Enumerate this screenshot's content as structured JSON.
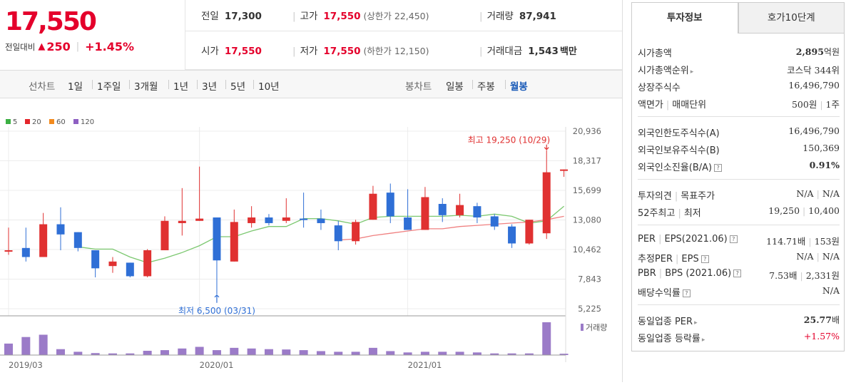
{
  "price": {
    "current": "17,550",
    "change_label": "전일대비",
    "change_arrow": "▲",
    "change_amount": "250",
    "change_rate": "+1.45%"
  },
  "quote": {
    "prev_close": {
      "label": "전일",
      "value": "17,300"
    },
    "high": {
      "label": "고가",
      "value": "17,550",
      "sub": "(상한가 22,450)"
    },
    "volume": {
      "label": "거래량",
      "value": "87,941"
    },
    "open": {
      "label": "시가",
      "value": "17,550"
    },
    "low": {
      "label": "저가",
      "value": "17,550",
      "sub": "(하한가 12,150)"
    },
    "amount": {
      "label": "거래대금",
      "value": "1,543",
      "unit": "백만"
    }
  },
  "period_bar": {
    "line_label": "선차트",
    "line_periods": [
      "1일",
      "1주일",
      "3개월",
      "1년",
      "3년",
      "5년",
      "10년"
    ],
    "candle_label": "봉차트",
    "candle_periods": [
      "일봉",
      "주봉",
      "월봉"
    ],
    "active_candle": "월봉"
  },
  "chart_data": {
    "type": "candlestick",
    "legend": [
      {
        "name": "5",
        "color": "#3cb043"
      },
      {
        "name": "20",
        "color": "#e4262c"
      },
      {
        "name": "60",
        "color": "#f28a1e"
      },
      {
        "name": "120",
        "color": "#8e5fc2"
      }
    ],
    "y_ticks": [
      "20,936",
      "18,317",
      "15,699",
      "13,080",
      "10,462",
      "7,843",
      "5,225"
    ],
    "y_range": [
      5225,
      20936
    ],
    "x_labels": [
      {
        "label": "2019/03",
        "index": 0
      },
      {
        "label": "2020/01",
        "index": 11
      },
      {
        "label": "2021/01",
        "index": 23
      }
    ],
    "max_annotation": {
      "text": "최고 19,250 (10/29)",
      "index": 31,
      "value": 19250
    },
    "min_annotation": {
      "text": "최저 6,500 (03/31)",
      "index": 12,
      "value": 6500
    },
    "volume_label": "거래량",
    "candles": [
      {
        "o": 10300,
        "h": 12400,
        "l": 10000,
        "c": 10400,
        "v": 0.35
      },
      {
        "o": 10600,
        "h": 12400,
        "l": 9400,
        "c": 9800,
        "v": 0.55
      },
      {
        "o": 9800,
        "h": 13700,
        "l": 9800,
        "c": 12700,
        "v": 0.62
      },
      {
        "o": 12700,
        "h": 14200,
        "l": 10400,
        "c": 11800,
        "v": 0.18
      },
      {
        "o": 12000,
        "h": 12000,
        "l": 10300,
        "c": 10600,
        "v": 0.1
      },
      {
        "o": 10400,
        "h": 10400,
        "l": 8000,
        "c": 8800,
        "v": 0.06
      },
      {
        "o": 9000,
        "h": 9800,
        "l": 8400,
        "c": 9400,
        "v": 0.05
      },
      {
        "o": 9300,
        "h": 9300,
        "l": 8000,
        "c": 8100,
        "v": 0.05
      },
      {
        "o": 8100,
        "h": 10500,
        "l": 8000,
        "c": 10400,
        "v": 0.13
      },
      {
        "o": 10400,
        "h": 13400,
        "l": 10400,
        "c": 13000,
        "v": 0.15
      },
      {
        "o": 12800,
        "h": 15900,
        "l": 11700,
        "c": 13000,
        "v": 0.2
      },
      {
        "o": 13000,
        "h": 17800,
        "l": 13000,
        "c": 13200,
        "v": 0.25
      },
      {
        "o": 13300,
        "h": 13300,
        "l": 6500,
        "c": 9500,
        "v": 0.15
      },
      {
        "o": 9400,
        "h": 14000,
        "l": 9400,
        "c": 12900,
        "v": 0.22
      },
      {
        "o": 12800,
        "h": 14300,
        "l": 12400,
        "c": 13300,
        "v": 0.2
      },
      {
        "o": 13300,
        "h": 13600,
        "l": 12600,
        "c": 12800,
        "v": 0.18
      },
      {
        "o": 13000,
        "h": 15000,
        "l": 12800,
        "c": 13300,
        "v": 0.17
      },
      {
        "o": 13200,
        "h": 15500,
        "l": 12400,
        "c": 13100,
        "v": 0.15
      },
      {
        "o": 13200,
        "h": 14000,
        "l": 12200,
        "c": 12800,
        "v": 0.12
      },
      {
        "o": 12600,
        "h": 13000,
        "l": 10400,
        "c": 11200,
        "v": 0.1
      },
      {
        "o": 11200,
        "h": 13100,
        "l": 10900,
        "c": 12900,
        "v": 0.1
      },
      {
        "o": 13100,
        "h": 16100,
        "l": 13100,
        "c": 15400,
        "v": 0.22
      },
      {
        "o": 15500,
        "h": 16300,
        "l": 12800,
        "c": 13400,
        "v": 0.12
      },
      {
        "o": 13300,
        "h": 15800,
        "l": 12300,
        "c": 12200,
        "v": 0.08
      },
      {
        "o": 12200,
        "h": 16000,
        "l": 12200,
        "c": 15100,
        "v": 0.1
      },
      {
        "o": 14500,
        "h": 15000,
        "l": 12900,
        "c": 13500,
        "v": 0.1
      },
      {
        "o": 13500,
        "h": 15400,
        "l": 13300,
        "c": 14400,
        "v": 0.1
      },
      {
        "o": 14300,
        "h": 14600,
        "l": 12800,
        "c": 13300,
        "v": 0.08
      },
      {
        "o": 13400,
        "h": 13600,
        "l": 12200,
        "c": 12500,
        "v": 0.05
      },
      {
        "o": 12500,
        "h": 12700,
        "l": 10600,
        "c": 11000,
        "v": 0.05
      },
      {
        "o": 11000,
        "h": 13100,
        "l": 10900,
        "c": 13100,
        "v": 0.05
      },
      {
        "o": 11900,
        "h": 19250,
        "l": 11400,
        "c": 17300,
        "v": 1.0
      },
      {
        "o": 17550,
        "h": 17550,
        "l": 16900,
        "c": 17550,
        "v": 0.04
      }
    ],
    "ma5": [
      null,
      null,
      null,
      null,
      10700,
      10500,
      10500,
      9800,
      9300,
      9700,
      10200,
      10800,
      11600,
      11600,
      12100,
      12500,
      12500,
      13200,
      13200,
      13000,
      12700,
      13300,
      13400,
      13400,
      13400,
      13400,
      13500,
      13400,
      13600,
      13400,
      12800,
      13000,
      14300
    ],
    "ma20": [
      null,
      null,
      null,
      null,
      null,
      null,
      null,
      null,
      null,
      null,
      null,
      null,
      null,
      null,
      null,
      null,
      null,
      null,
      null,
      11300,
      11400,
      11700,
      11900,
      12100,
      12300,
      12300,
      12500,
      12600,
      12700,
      12800,
      12900,
      13100,
      13400
    ]
  },
  "right_panel": {
    "tabs": [
      "투자정보",
      "호가10단계"
    ],
    "rows": [
      {
        "key": "시가총액",
        "value": "2,895",
        "unit": "억원",
        "bold": true
      },
      {
        "key": "시가총액순위",
        "arrow": "▸",
        "value": "코스닥 344위"
      },
      {
        "key": "상장주식수",
        "value": "16,496,790"
      },
      {
        "key": "액면가",
        "key2": "매매단위",
        "value": "500원",
        "value2": "1주"
      },
      {
        "key": "외국인한도주식수(A)",
        "value": "16,496,790"
      },
      {
        "key": "외국인보유주식수(B)",
        "value": "150,369"
      },
      {
        "key": "외국인소진율(B/A)",
        "help": "?",
        "value": "0.91%",
        "bold": true
      },
      {
        "key": "투자의견",
        "key2": "목표주가",
        "value": "N/A",
        "value2": "N/A"
      },
      {
        "key": "52주최고",
        "key2": "최저",
        "value": "19,250",
        "value2": "10,400"
      },
      {
        "key": "PER",
        "key2": "EPS(2021.06)",
        "help": "?",
        "value": "114.71배",
        "value2": "153원"
      },
      {
        "key": "추정PER",
        "key2": "EPS",
        "help": "?",
        "value": "N/A",
        "value2": "N/A"
      },
      {
        "key": "PBR",
        "key2": "BPS (2021.06)",
        "help": "?",
        "value": "7.53배",
        "value2": "2,331원"
      },
      {
        "key": "배당수익률",
        "help": "?",
        "value": "N/A"
      },
      {
        "key": "동일업종 PER",
        "arrow": "▸",
        "value": "25.77",
        "unit": "배",
        "bold": true
      },
      {
        "key": "동일업종 등락률",
        "arrow": "▸",
        "value": "+1.57%",
        "red": true
      }
    ]
  }
}
